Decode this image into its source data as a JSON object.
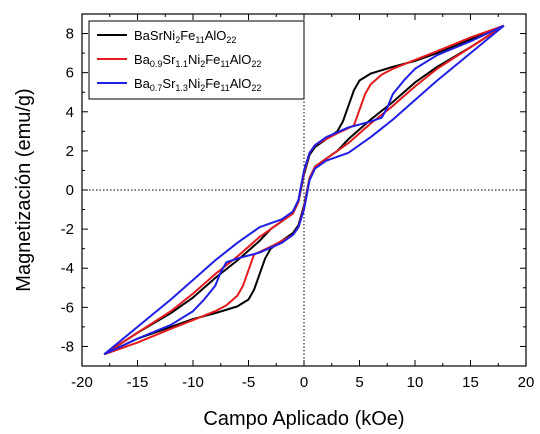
{
  "chart_data": {
    "type": "line",
    "title": "",
    "xlabel": "Campo Aplicado (kOe)",
    "ylabel": "Magnetización (emu/g)",
    "xlim": [
      -20,
      20
    ],
    "ylim": [
      -9,
      9
    ],
    "xticks": [
      -20,
      -15,
      -10,
      -5,
      0,
      5,
      10,
      15,
      20
    ],
    "yticks": [
      -8,
      -6,
      -4,
      -2,
      0,
      2,
      4,
      6,
      8
    ],
    "grid": false,
    "zero_lines": "dotted",
    "legend_position": "top-left",
    "series": [
      {
        "name_parts": [
          [
            "BaSrNi",
            ""
          ],
          [
            "2",
            "sub"
          ],
          [
            "Fe",
            ""
          ],
          [
            "11",
            "sub"
          ],
          [
            "AlO",
            ""
          ],
          [
            "22",
            "sub"
          ]
        ],
        "color": "#000000",
        "upper_branch": [
          [
            18,
            8.4
          ],
          [
            15,
            7.7
          ],
          [
            12,
            7.0
          ],
          [
            10,
            6.6
          ],
          [
            8,
            6.3
          ],
          [
            6,
            5.95
          ],
          [
            5,
            5.6
          ],
          [
            4.5,
            5.1
          ],
          [
            4,
            4.3
          ],
          [
            3.5,
            3.5
          ],
          [
            3,
            3.0
          ],
          [
            2,
            2.6
          ],
          [
            1,
            2.2
          ],
          [
            0.5,
            1.8
          ],
          [
            0,
            0.8
          ],
          [
            -0.5,
            -0.6
          ],
          [
            -1,
            -1.2
          ],
          [
            -2,
            -1.6
          ],
          [
            -3,
            -2.0
          ],
          [
            -4,
            -2.6
          ],
          [
            -6,
            -3.6
          ],
          [
            -8,
            -4.5
          ],
          [
            -10,
            -5.5
          ],
          [
            -12,
            -6.3
          ],
          [
            -15,
            -7.3
          ],
          [
            -18,
            -8.4
          ]
        ],
        "lower_branch": [
          [
            -18,
            -8.4
          ],
          [
            -15,
            -7.6
          ],
          [
            -12,
            -7.0
          ],
          [
            -10,
            -6.6
          ],
          [
            -8,
            -6.3
          ],
          [
            -6,
            -5.95
          ],
          [
            -5,
            -5.6
          ],
          [
            -4.5,
            -5.1
          ],
          [
            -4,
            -4.3
          ],
          [
            -3.5,
            -3.5
          ],
          [
            -3,
            -3.0
          ],
          [
            -2,
            -2.6
          ],
          [
            -1,
            -2.2
          ],
          [
            -0.5,
            -1.8
          ],
          [
            0,
            -0.8
          ],
          [
            0.5,
            0.6
          ],
          [
            1,
            1.2
          ],
          [
            2,
            1.6
          ],
          [
            3,
            2.0
          ],
          [
            4,
            2.6
          ],
          [
            6,
            3.6
          ],
          [
            8,
            4.5
          ],
          [
            10,
            5.5
          ],
          [
            12,
            6.3
          ],
          [
            15,
            7.3
          ],
          [
            18,
            8.4
          ]
        ]
      },
      {
        "name_parts": [
          [
            "Ba",
            ""
          ],
          [
            "0.9",
            "sub"
          ],
          [
            "Sr",
            ""
          ],
          [
            "1.1",
            "sub"
          ],
          [
            "Ni",
            ""
          ],
          [
            "2",
            "sub"
          ],
          [
            "Fe",
            ""
          ],
          [
            "11",
            "sub"
          ],
          [
            "AlO",
            ""
          ],
          [
            "22",
            "sub"
          ]
        ],
        "color": "#e41a1c",
        "upper_branch": [
          [
            18,
            8.4
          ],
          [
            15,
            7.8
          ],
          [
            12,
            7.1
          ],
          [
            10,
            6.65
          ],
          [
            8,
            6.2
          ],
          [
            7,
            5.9
          ],
          [
            6,
            5.4
          ],
          [
            5.5,
            4.9
          ],
          [
            5,
            4.1
          ],
          [
            4.5,
            3.3
          ],
          [
            3,
            2.9
          ],
          [
            2,
            2.6
          ],
          [
            1,
            2.3
          ],
          [
            0.5,
            1.9
          ],
          [
            0,
            0.9
          ],
          [
            -0.5,
            -0.6
          ],
          [
            -1,
            -1.2
          ],
          [
            -2,
            -1.6
          ],
          [
            -3,
            -2.0
          ],
          [
            -4,
            -2.4
          ],
          [
            -6,
            -3.4
          ],
          [
            -8,
            -4.3
          ],
          [
            -10,
            -5.3
          ],
          [
            -12,
            -6.2
          ],
          [
            -15,
            -7.3
          ],
          [
            -18,
            -8.4
          ]
        ],
        "lower_branch": [
          [
            -18,
            -8.4
          ],
          [
            -15,
            -7.8
          ],
          [
            -12,
            -7.1
          ],
          [
            -10,
            -6.65
          ],
          [
            -8,
            -6.2
          ],
          [
            -7,
            -5.9
          ],
          [
            -6,
            -5.4
          ],
          [
            -5.5,
            -4.9
          ],
          [
            -5,
            -4.1
          ],
          [
            -4.5,
            -3.3
          ],
          [
            -3,
            -2.9
          ],
          [
            -2,
            -2.6
          ],
          [
            -1,
            -2.3
          ],
          [
            -0.5,
            -1.9
          ],
          [
            0,
            -0.9
          ],
          [
            0.5,
            0.6
          ],
          [
            1,
            1.2
          ],
          [
            2,
            1.6
          ],
          [
            3,
            2.0
          ],
          [
            4,
            2.4
          ],
          [
            6,
            3.4
          ],
          [
            8,
            4.3
          ],
          [
            10,
            5.3
          ],
          [
            12,
            6.2
          ],
          [
            15,
            7.3
          ],
          [
            18,
            8.4
          ]
        ]
      },
      {
        "name_parts": [
          [
            "Ba",
            ""
          ],
          [
            "0.7",
            "sub"
          ],
          [
            "Sr",
            ""
          ],
          [
            "1.3",
            "sub"
          ],
          [
            "Ni",
            ""
          ],
          [
            "2",
            "sub"
          ],
          [
            "Fe",
            ""
          ],
          [
            "11",
            "sub"
          ],
          [
            "AlO",
            ""
          ],
          [
            "22",
            "sub"
          ]
        ],
        "color": "#1f1fe6",
        "upper_branch": [
          [
            18,
            8.4
          ],
          [
            15,
            7.6
          ],
          [
            12,
            6.9
          ],
          [
            10,
            6.2
          ],
          [
            9,
            5.6
          ],
          [
            8,
            4.9
          ],
          [
            7.5,
            4.2
          ],
          [
            7,
            3.7
          ],
          [
            6,
            3.5
          ],
          [
            4,
            3.2
          ],
          [
            2,
            2.7
          ],
          [
            1,
            2.3
          ],
          [
            0.5,
            1.9
          ],
          [
            0,
            1.0
          ],
          [
            -0.5,
            -0.5
          ],
          [
            -1,
            -1.1
          ],
          [
            -2,
            -1.5
          ],
          [
            -4,
            -1.9
          ],
          [
            -6,
            -2.7
          ],
          [
            -8,
            -3.6
          ],
          [
            -10,
            -4.6
          ],
          [
            -12,
            -5.6
          ],
          [
            -15,
            -7.0
          ],
          [
            -18,
            -8.4
          ]
        ],
        "lower_branch": [
          [
            -18,
            -8.4
          ],
          [
            -15,
            -7.6
          ],
          [
            -12,
            -6.9
          ],
          [
            -10,
            -6.2
          ],
          [
            -9,
            -5.6
          ],
          [
            -8,
            -4.9
          ],
          [
            -7.5,
            -4.2
          ],
          [
            -7,
            -3.7
          ],
          [
            -6,
            -3.5
          ],
          [
            -4,
            -3.2
          ],
          [
            -2,
            -2.7
          ],
          [
            -1,
            -2.3
          ],
          [
            -0.5,
            -1.9
          ],
          [
            0,
            -1.0
          ],
          [
            0.5,
            0.5
          ],
          [
            1,
            1.1
          ],
          [
            2,
            1.5
          ],
          [
            4,
            1.9
          ],
          [
            6,
            2.7
          ],
          [
            8,
            3.6
          ],
          [
            10,
            4.6
          ],
          [
            12,
            5.6
          ],
          [
            15,
            7.0
          ],
          [
            18,
            8.4
          ]
        ]
      }
    ]
  }
}
